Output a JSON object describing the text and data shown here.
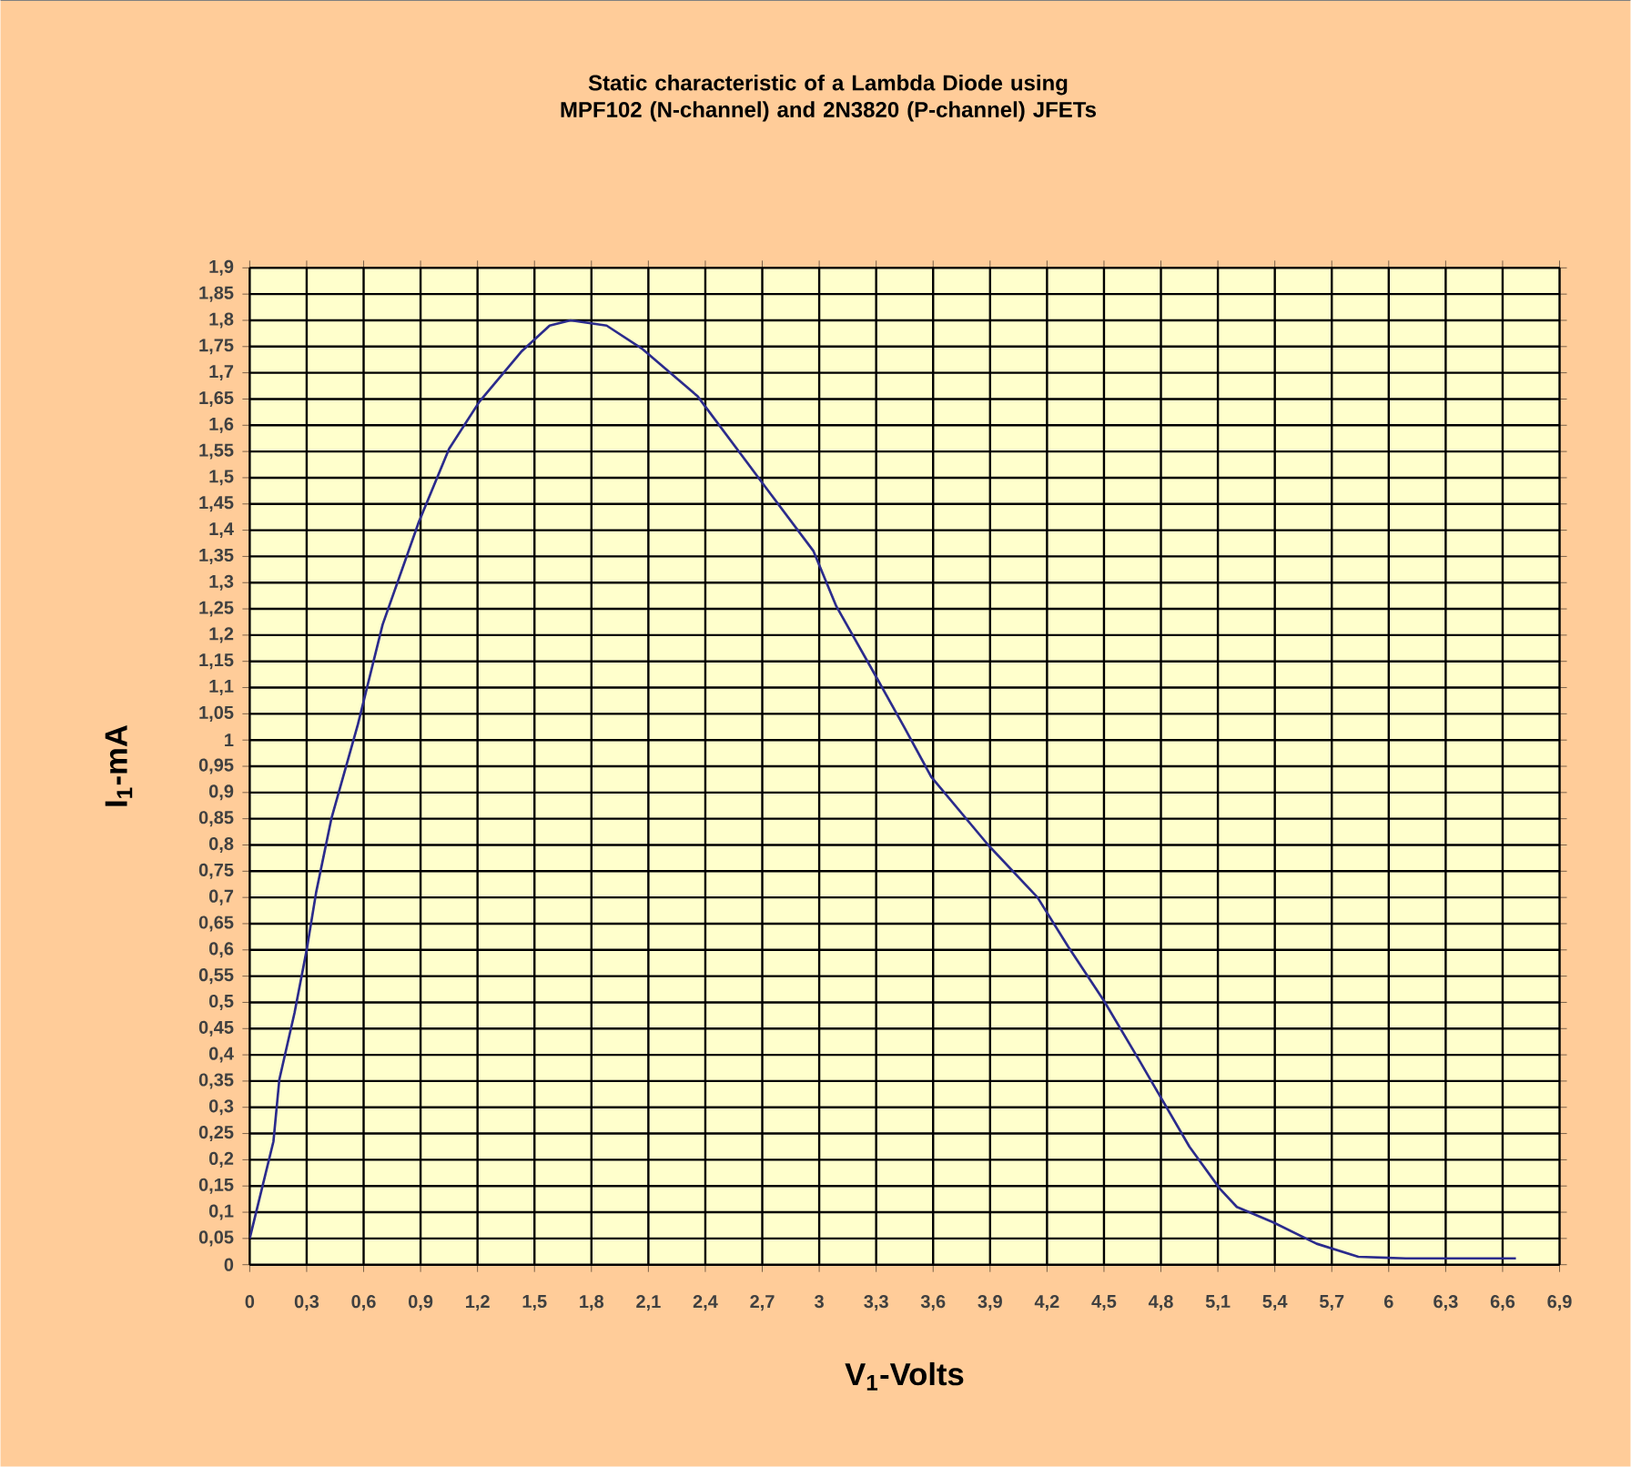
{
  "chart_data": {
    "type": "line",
    "title": "Static characteristic of a Lambda Diode using MPF102 (N-channel) and 2N3820 (P-channel) JFETs",
    "xlabel": "V$_{1}$-Volts",
    "ylabel": "I$_{1}$-mA",
    "x": [
      0,
      0.125,
      0.156,
      0.236,
      0.3,
      0.35,
      0.43,
      0.57,
      0.7,
      0.89,
      1.05,
      1.21,
      1.43,
      1.58,
      1.69,
      1.88,
      2.07,
      2.36,
      2.68,
      2.97,
      3.09,
      3.29,
      3.45,
      3.59,
      3.89,
      4.15,
      4.31,
      4.5,
      4.69,
      4.82,
      4.95,
      5.11,
      5.2,
      5.39,
      5.62,
      5.84,
      6.09,
      6.67
    ],
    "series": [
      {
        "color": "#2b2b8c",
        "values": [
          0.05,
          0.235,
          0.353,
          0.48,
          0.6,
          0.71,
          0.85,
          1.03,
          1.22,
          1.415,
          1.555,
          1.645,
          1.74,
          1.79,
          1.8,
          1.79,
          1.745,
          1.655,
          1.5,
          1.36,
          1.255,
          1.127,
          1.023,
          0.93,
          0.8,
          0.7,
          0.607,
          0.503,
          0.387,
          0.306,
          0.225,
          0.145,
          0.11,
          0.081,
          0.04,
          0.015,
          0.012,
          0.012
        ]
      }
    ],
    "xlim": [
      0,
      6.9
    ],
    "ylim": [
      0,
      1.9
    ],
    "xticks": [
      0,
      {
        "value": 0.3,
        "label": "0,3"
      },
      {
        "value": 0.6,
        "label": "0,6"
      },
      {
        "value": 0.9,
        "label": "0,9"
      },
      {
        "value": 1.2,
        "label": "1,2"
      },
      {
        "value": 1.5,
        "label": "1,5"
      },
      {
        "value": 1.8,
        "label": "1,8"
      },
      {
        "value": 2.1,
        "label": "2,1"
      },
      {
        "value": 2.4,
        "label": "2,4"
      },
      {
        "value": 2.7,
        "label": "2,7"
      },
      3,
      {
        "value": 3.3,
        "label": "3,3"
      },
      {
        "value": 3.6,
        "label": "3,6"
      },
      {
        "value": 3.9,
        "label": "3,9"
      },
      {
        "value": 4.2,
        "label": "4,2"
      },
      {
        "value": 4.5,
        "label": "4,5"
      },
      {
        "value": 4.8,
        "label": "4,8"
      },
      {
        "value": 5.1,
        "label": "5,1"
      },
      {
        "value": 5.4,
        "label": "5,4"
      },
      {
        "value": 5.7,
        "label": "5,7"
      },
      6,
      {
        "value": 6.3,
        "label": "6,3"
      },
      {
        "value": 6.6,
        "label": "6,6"
      },
      {
        "value": 6.9,
        "label": "6,9"
      }
    ],
    "yticks": [
      0,
      {
        "value": 0.05,
        "label": "0,05"
      },
      {
        "value": 0.1,
        "label": "0,1"
      },
      {
        "value": 0.15,
        "label": "0,15"
      },
      {
        "value": 0.2,
        "label": "0,2"
      },
      {
        "value": 0.25,
        "label": "0,25"
      },
      {
        "value": 0.3,
        "label": "0,3"
      },
      {
        "value": 0.35,
        "label": "0,35"
      },
      {
        "value": 0.4,
        "label": "0,4"
      },
      {
        "value": 0.45,
        "label": "0,45"
      },
      {
        "value": 0.5,
        "label": "0,5"
      },
      {
        "value": 0.55,
        "label": "0,55"
      },
      {
        "value": 0.6,
        "label": "0,6"
      },
      {
        "value": 0.65,
        "label": "0,65"
      },
      {
        "value": 0.7,
        "label": "0,7"
      },
      {
        "value": 0.75,
        "label": "0,75"
      },
      {
        "value": 0.8,
        "label": "0,8"
      },
      {
        "value": 0.85,
        "label": "0,85"
      },
      {
        "value": 0.9,
        "label": "0,9"
      },
      {
        "value": 0.95,
        "label": "0,95"
      },
      1,
      {
        "value": 1.05,
        "label": "1,05"
      },
      {
        "value": 1.1,
        "label": "1,1"
      },
      {
        "value": 1.15,
        "label": "1,15"
      },
      {
        "value": 1.2,
        "label": "1,2"
      },
      {
        "value": 1.25,
        "label": "1,25"
      },
      {
        "value": 1.3,
        "label": "1,3"
      },
      {
        "value": 1.35,
        "label": "1,35"
      },
      {
        "value": 1.4,
        "label": "1,4"
      },
      {
        "value": 1.45,
        "label": "1,45"
      },
      {
        "value": 1.5,
        "label": "1,5"
      },
      {
        "value": 1.55,
        "label": "1,55"
      },
      {
        "value": 1.6,
        "label": "1,6"
      },
      {
        "value": 1.65,
        "label": "1,65"
      },
      {
        "value": 1.7,
        "label": "1,7"
      },
      {
        "value": 1.75,
        "label": "1,75"
      },
      {
        "value": 1.8,
        "label": "1,8"
      },
      {
        "value": 1.85,
        "label": "1,85"
      },
      {
        "value": 1.9,
        "label": "1,9"
      }
    ],
    "grid": true,
    "line_style": "solid"
  }
}
